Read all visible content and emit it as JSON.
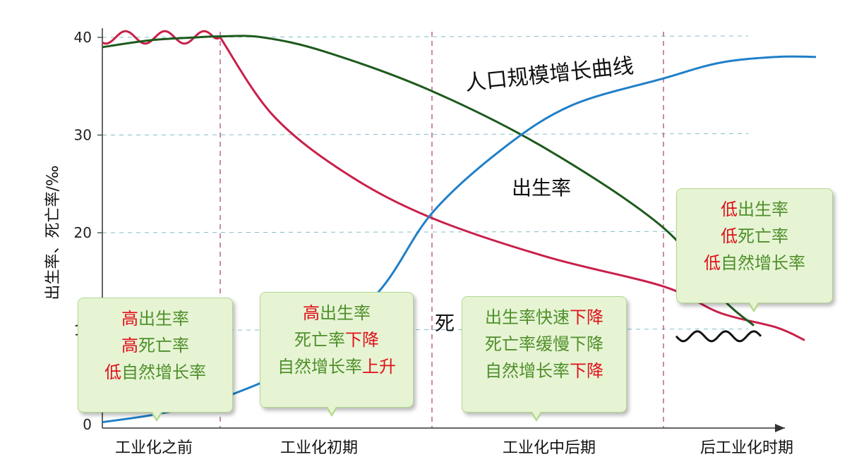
{
  "chart_data": {
    "type": "line",
    "ylabel": "出生率、死亡率/‰",
    "yticks": [
      0,
      10,
      20,
      30,
      40
    ],
    "ylim": [
      0,
      43
    ],
    "categories": [
      "工业化之前",
      "工业化初期",
      "工业化中后期",
      "后工业化时期"
    ],
    "grid": "dashed horizontal at 10, 20, 30, 40",
    "series": [
      {
        "name": "出生率",
        "color": "#1d5a1d",
        "points": [
          [
            0,
            39.0
          ],
          [
            0.4,
            39.7
          ],
          [
            0.8,
            40.0
          ],
          [
            1.0,
            40.1
          ],
          [
            1.2,
            40.0
          ],
          [
            1.5,
            38.5
          ],
          [
            2.0,
            34.5
          ],
          [
            2.5,
            28.5
          ],
          [
            3.0,
            20.5
          ],
          [
            3.5,
            13.5
          ],
          [
            3.8,
            10.5
          ],
          [
            4.0,
            9.7
          ],
          [
            4.2,
            9.7
          ]
        ],
        "note": "fluctuates around 10 in the last period"
      },
      {
        "name": "死亡率",
        "color": "#c8204a",
        "points": [
          [
            0,
            40.0
          ],
          [
            1.0,
            40.0
          ],
          [
            1.25,
            32.0
          ],
          [
            1.6,
            26.0
          ],
          [
            2.0,
            21.5
          ],
          [
            2.5,
            17.5
          ],
          [
            3.0,
            14.5
          ],
          [
            3.5,
            11.8
          ],
          [
            4.0,
            10.3
          ],
          [
            4.25,
            9.0
          ]
        ],
        "note": "fluctuates around 40 before industrialization"
      },
      {
        "name": "人口规模增长曲线",
        "color": "#1f7fc8",
        "points": [
          [
            0,
            0.6
          ],
          [
            0.5,
            1.5
          ],
          [
            1.0,
            3.0
          ],
          [
            1.4,
            7.0
          ],
          [
            1.75,
            14.0
          ],
          [
            2.0,
            22.0
          ],
          [
            2.3,
            28.5
          ],
          [
            2.6,
            33.0
          ],
          [
            3.0,
            35.8
          ],
          [
            3.5,
            37.4
          ],
          [
            4.0,
            38.0
          ],
          [
            4.35,
            38.0
          ]
        ]
      }
    ],
    "curve_labels": {
      "population": "人口规模增长曲线",
      "birth": "出生率",
      "death": "死"
    }
  },
  "callouts": [
    {
      "lines": [
        [
          [
            "高",
            "red"
          ],
          [
            "出生率",
            "green"
          ]
        ],
        [
          [
            "高",
            "red"
          ],
          [
            "死亡率",
            "green"
          ]
        ],
        [
          [
            "低",
            "red"
          ],
          [
            "自然增长率",
            "green"
          ]
        ]
      ]
    },
    {
      "lines": [
        [
          [
            "高",
            "red"
          ],
          [
            "出生率",
            "green"
          ]
        ],
        [
          [
            "死亡率",
            "green"
          ],
          [
            "下降",
            "red"
          ]
        ],
        [
          [
            "自然增长率",
            "green"
          ],
          [
            "上升",
            "red"
          ]
        ]
      ]
    },
    {
      "lines": [
        [
          [
            "出生率快速",
            "green"
          ],
          [
            "下降",
            "red"
          ]
        ],
        [
          [
            "死亡率缓慢下降",
            "green"
          ]
        ],
        [
          [
            "自然增长率",
            "green"
          ],
          [
            "下降",
            "red"
          ]
        ]
      ]
    },
    {
      "lines": [
        [
          [
            "低",
            "red"
          ],
          [
            "出生率",
            "green"
          ]
        ],
        [
          [
            "低",
            "red"
          ],
          [
            "死亡率",
            "green"
          ]
        ],
        [
          [
            "低",
            "red"
          ],
          [
            "自然增长率",
            "green"
          ]
        ]
      ]
    }
  ]
}
